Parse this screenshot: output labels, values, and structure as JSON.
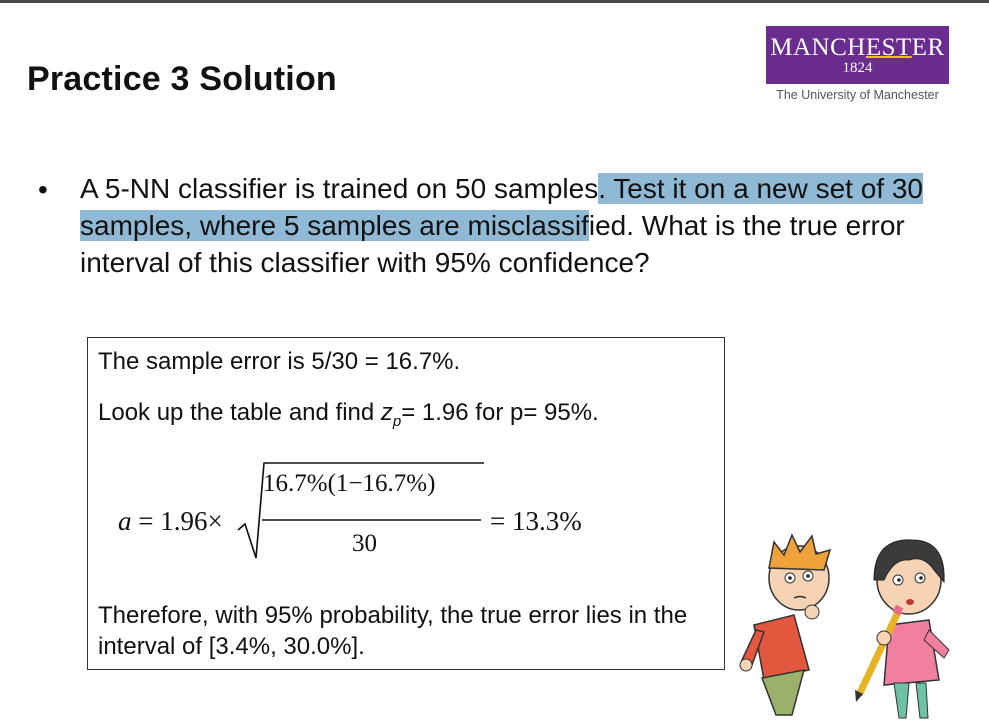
{
  "slide": {
    "title": "Practice 3 Solution",
    "logo": {
      "name_pre": "MANCH",
      "name_stripe": "EST",
      "name_post": "ER",
      "year": "1824",
      "subtitle": "The University of Manchester",
      "bg_color": "#6b2c8f"
    },
    "bullet": {
      "part1": "A 5-NN classifier is trained on 50 samples",
      "part2_highlighted": ". Test it on a new set of 30 samples, where 5 samples are misclassif",
      "part3": "ied. What is the true error interval of this classifier with 95% confidence?",
      "highlight_color": "#8fb9d4"
    },
    "answer": {
      "sample_error": "The sample error is 5/30 = 16.7%.",
      "lookup_pre": "Look up the table and find ",
      "z_symbol": "z",
      "z_sub": "p",
      "lookup_post": "= 1.96 for p= 95%.",
      "formula": {
        "lhs": "a",
        "eq_coef": " = 1.96×",
        "numerator": "16.7%(1−16.7%)",
        "denominator": "30",
        "result": "= 13.3%"
      },
      "conclusion": "Therefore, with 95% probability, the true error lies in the interval of [3.4%, 30.0%]."
    },
    "illustration": "two-thinking-kids"
  }
}
